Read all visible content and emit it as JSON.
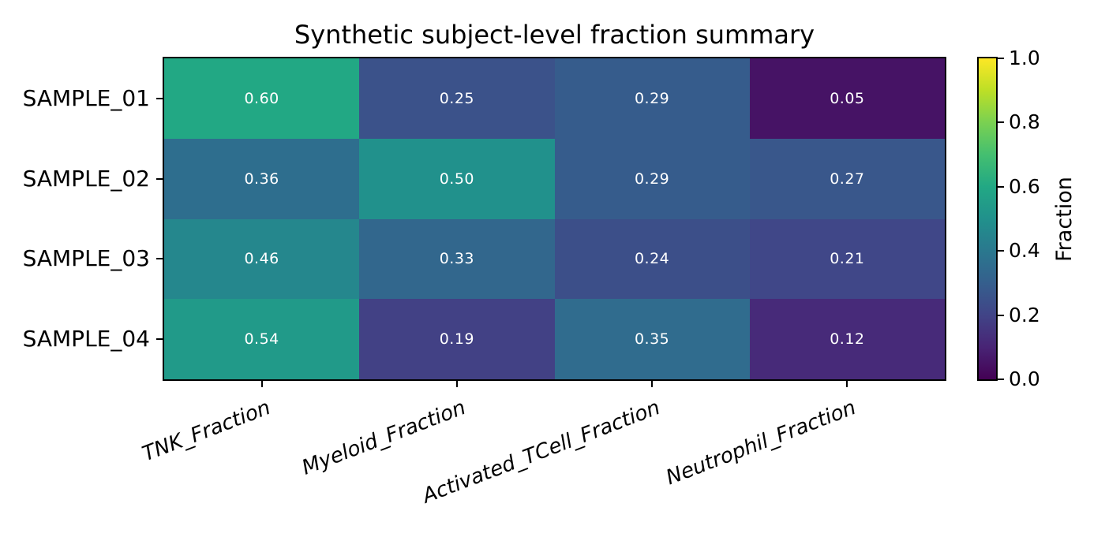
{
  "title": "Synthetic subject-level fraction summary",
  "chart_data": {
    "type": "heatmap",
    "title": "Synthetic subject-level fraction summary",
    "rows": [
      "SAMPLE_01",
      "SAMPLE_02",
      "SAMPLE_03",
      "SAMPLE_04"
    ],
    "columns": [
      "TNK_Fraction",
      "Myeloid_Fraction",
      "Activated_TCell_Fraction",
      "Neutrophil_Fraction"
    ],
    "values": [
      [
        0.6,
        0.25,
        0.29,
        0.05
      ],
      [
        0.36,
        0.5,
        0.29,
        0.27
      ],
      [
        0.46,
        0.33,
        0.24,
        0.21
      ],
      [
        0.54,
        0.19,
        0.35,
        0.12
      ]
    ],
    "cell_labels": [
      [
        "0.60",
        "0.25",
        "0.29",
        "0.05"
      ],
      [
        "0.36",
        "0.50",
        "0.29",
        "0.27"
      ],
      [
        "0.46",
        "0.33",
        "0.24",
        "0.21"
      ],
      [
        "0.54",
        "0.19",
        "0.35",
        "0.12"
      ]
    ],
    "cell_text_color": "#ffffff",
    "axis_color": "#000000",
    "colormap": "viridis",
    "vmin": 0.0,
    "vmax": 1.0,
    "colormap_stops": [
      [
        0.0,
        "#440154"
      ],
      [
        0.1,
        "#482475"
      ],
      [
        0.2,
        "#414487"
      ],
      [
        0.3,
        "#355f8d"
      ],
      [
        0.4,
        "#2a788e"
      ],
      [
        0.5,
        "#21918c"
      ],
      [
        0.6,
        "#22a884"
      ],
      [
        0.7,
        "#44bf70"
      ],
      [
        0.8,
        "#7ad151"
      ],
      [
        0.9,
        "#bddf26"
      ],
      [
        1.0,
        "#fde725"
      ]
    ],
    "colorbar": {
      "label": "Fraction",
      "tick_values": [
        0.0,
        0.2,
        0.4,
        0.6,
        0.8,
        1.0
      ],
      "tick_labels": [
        "0.0",
        "0.2",
        "0.4",
        "0.6",
        "0.8",
        "1.0"
      ]
    },
    "x_tick_rotation_deg": 21,
    "grid": false,
    "legend_position": "right-colorbar"
  }
}
